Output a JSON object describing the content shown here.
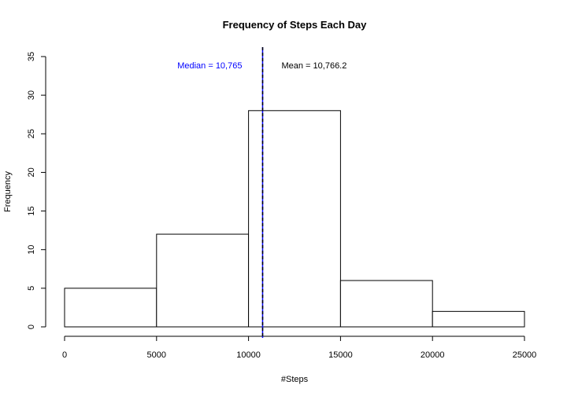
{
  "chart_data": {
    "type": "bar",
    "title": "Frequency of Steps Each Day",
    "xlabel": "#Steps",
    "ylabel": "Frequency",
    "bins": [
      {
        "start": 0,
        "end": 5000,
        "count": 5
      },
      {
        "start": 5000,
        "end": 10000,
        "count": 12
      },
      {
        "start": 10000,
        "end": 15000,
        "count": 28
      },
      {
        "start": 15000,
        "end": 20000,
        "count": 6
      },
      {
        "start": 20000,
        "end": 25000,
        "count": 2
      }
    ],
    "xlim": [
      0,
      25000
    ],
    "ylim": [
      0,
      35
    ],
    "x_ticks": [
      0,
      5000,
      10000,
      15000,
      20000,
      25000
    ],
    "y_ticks": [
      0,
      5,
      10,
      15,
      20,
      25,
      30,
      35
    ],
    "grid": false,
    "legend": "none",
    "reference_lines": [
      {
        "name": "median",
        "value": 10765,
        "label": "Median = 10,765",
        "color": "#0000ff",
        "style": "solid"
      },
      {
        "name": "mean",
        "value": 10766.2,
        "label": "Mean = 10,766.2",
        "color": "#000000",
        "style": "dashed"
      }
    ]
  }
}
